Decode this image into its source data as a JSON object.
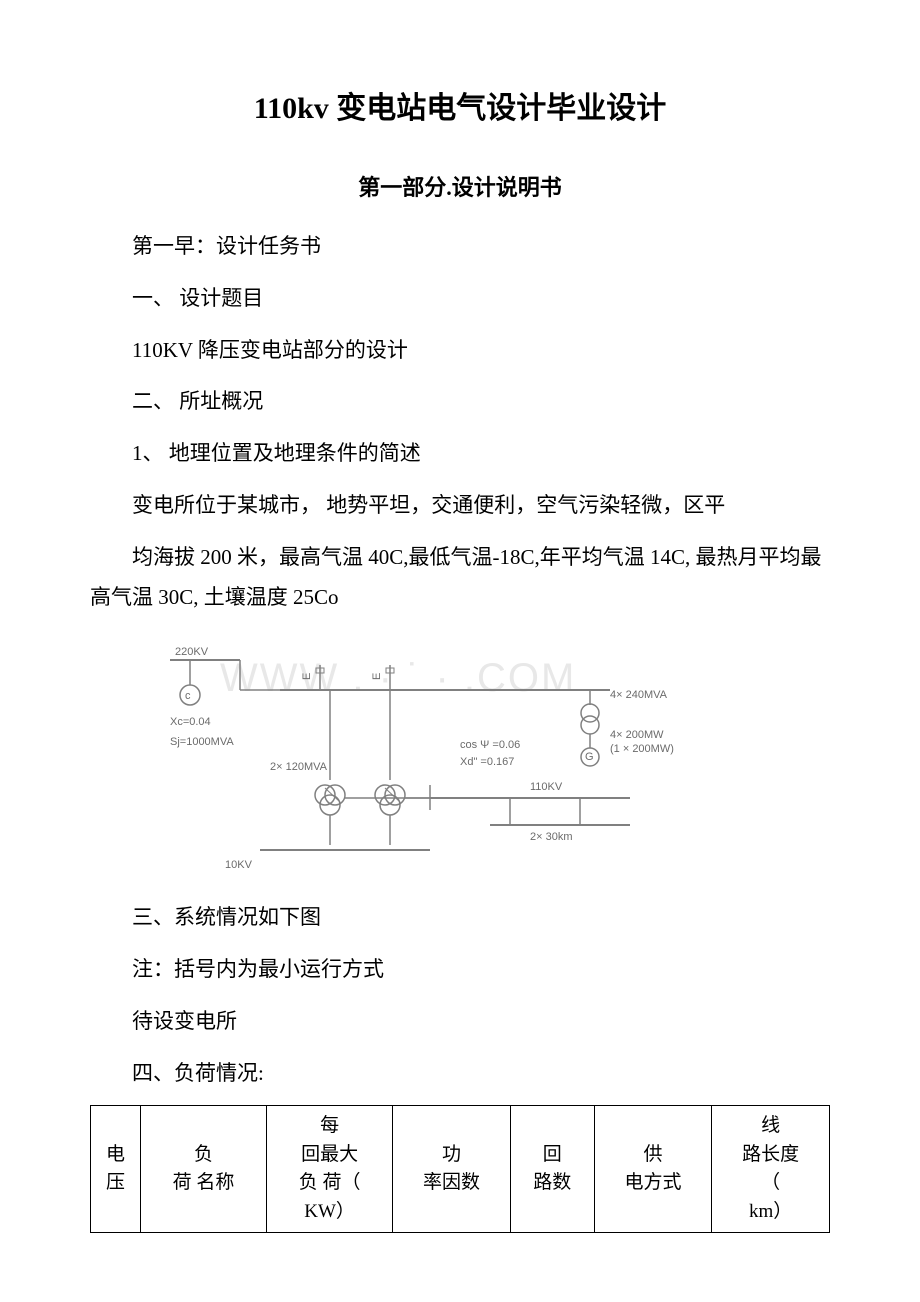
{
  "title": "110kv 变电站电气设计毕业设计",
  "subtitle": "第一部分.设计说明书",
  "lines": {
    "l1": "第一早：设计任务书",
    "l2": "一、 设计题目",
    "l3": "110KV 降压变电站部分的设计",
    "l4": "二、 所址概况",
    "l5": "1、 地理位置及地理条件的简述",
    "l6": "变电所位于某城市， 地势平坦，交通便利，空气污染轻微，区平",
    "l7": "均海拔 200 米，最高气温 40C,最低气温-18C,年平均气温 14C, 最热月平均最高气温 30C, 土壤温度 25Co",
    "l8": "三、系统情况如下图",
    "l9": "注：括号内为最小运行方式",
    "l10": "待设变电所",
    "l11": "四、负荷情况:"
  },
  "watermark": "WWW . ·         ˙ ·  .COM",
  "diagram": {
    "bus_220kv": "220KV",
    "xc": "Xc=0.04",
    "sj": "Sj=1000MVA",
    "t_left": "2× 120MVA",
    "bus_10kv": "10KV",
    "gen_rating": "4× 240MVA",
    "gen_power": "4× 200MW",
    "gen_min": "(1 × 200MW)",
    "cos": "cos Ψ =0.06",
    "xd": "Xd\" =0.167",
    "bus_110kv": "110KV",
    "line_len": "2× 30km",
    "line_color": "#808080",
    "text_color": "#6b6b6b"
  },
  "table": {
    "headers": {
      "c1": "电\n压",
      "c2": "负\n荷 名称",
      "c3": "每\n回最大\n负 荷（\nKW）",
      "c4": "功\n率因数",
      "c5": "回\n路数",
      "c6": "供\n电方式",
      "c7": "线\n路长度\n（\nkm）"
    }
  }
}
